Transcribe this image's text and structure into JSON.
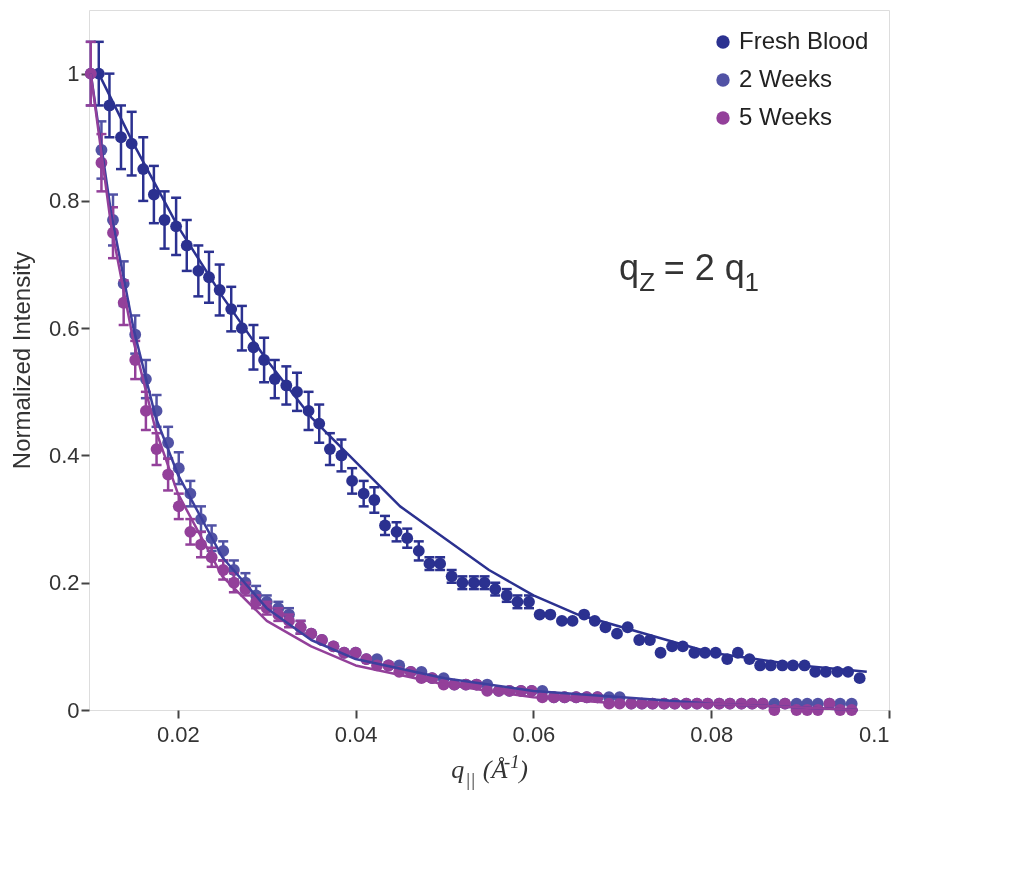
{
  "chart_data": {
    "type": "scatter",
    "xlabel": "q$_{||}$ (Å$^{-1}$)",
    "ylabel": "Normalized Intensity",
    "xlim": [
      0.01,
      0.1
    ],
    "ylim": [
      0,
      1.1
    ],
    "xticks": [
      0.02,
      0.04,
      0.06,
      0.08,
      0.1
    ],
    "yticks": [
      0,
      0.2,
      0.4,
      0.6,
      0.8,
      1
    ],
    "grid": false,
    "legend": "top right",
    "marker": "circle",
    "line_style": "solid",
    "annotations": [
      "q$_{Z}$ = 2 q$_{1}$"
    ],
    "series": [
      {
        "name": "Fresh Blood",
        "color": "#2b3190",
        "x": [
          0.0111,
          0.0123,
          0.0136,
          0.0148,
          0.0161,
          0.0173,
          0.0185,
          0.0198,
          0.021,
          0.0223,
          0.0235,
          0.0247,
          0.026,
          0.0272,
          0.0285,
          0.0297,
          0.0309,
          0.0322,
          0.0334,
          0.0347,
          0.0359,
          0.0371,
          0.0384,
          0.0396,
          0.0409,
          0.0421,
          0.0433,
          0.0446,
          0.0458,
          0.0471,
          0.0483,
          0.0495,
          0.0508,
          0.052,
          0.0533,
          0.0545,
          0.0557,
          0.057,
          0.0582,
          0.0595,
          0.0607,
          0.0619,
          0.0632,
          0.0644,
          0.0657,
          0.0669,
          0.0681,
          0.0694,
          0.0706,
          0.0719,
          0.0731,
          0.0743,
          0.0756,
          0.0768,
          0.0781,
          0.0793,
          0.0805,
          0.0818,
          0.083,
          0.0843,
          0.0855,
          0.0867,
          0.088,
          0.0892,
          0.0905,
          0.0917,
          0.0929,
          0.0942,
          0.0954,
          0.0967
        ],
        "values": [
          1.0,
          0.95,
          0.9,
          0.89,
          0.85,
          0.81,
          0.77,
          0.76,
          0.73,
          0.69,
          0.68,
          0.66,
          0.63,
          0.6,
          0.57,
          0.55,
          0.52,
          0.51,
          0.5,
          0.47,
          0.45,
          0.41,
          0.4,
          0.36,
          0.34,
          0.33,
          0.29,
          0.28,
          0.27,
          0.25,
          0.23,
          0.23,
          0.21,
          0.2,
          0.2,
          0.2,
          0.19,
          0.18,
          0.17,
          0.17,
          0.15,
          0.15,
          0.14,
          0.14,
          0.15,
          0.14,
          0.13,
          0.12,
          0.13,
          0.11,
          0.11,
          0.09,
          0.1,
          0.1,
          0.09,
          0.09,
          0.09,
          0.08,
          0.09,
          0.08,
          0.07,
          0.07,
          0.07,
          0.07,
          0.07,
          0.06,
          0.06,
          0.06,
          0.06,
          0.05
        ],
        "errors": [
          0.05,
          0.05,
          0.05,
          0.05,
          0.05,
          0.045,
          0.045,
          0.045,
          0.04,
          0.04,
          0.04,
          0.04,
          0.035,
          0.035,
          0.035,
          0.035,
          0.03,
          0.03,
          0.03,
          0.03,
          0.03,
          0.025,
          0.025,
          0.02,
          0.02,
          0.02,
          0.015,
          0.015,
          0.015,
          0.015,
          0.01,
          0.01,
          0.01,
          0.01,
          0.01,
          0.01,
          0.01,
          0.01,
          0.01,
          0.01,
          null,
          null,
          null,
          null,
          null,
          null,
          null,
          null,
          null,
          null,
          null,
          null,
          null,
          null,
          null,
          null,
          null,
          null,
          null,
          null,
          null,
          null,
          null,
          null,
          null,
          null,
          null,
          null,
          null,
          null
        ]
      },
      {
        "name": "2 Weeks",
        "color": "#5152a5",
        "x": [
          0.0102,
          0.0114,
          0.0127,
          0.0139,
          0.0152,
          0.0164,
          0.0176,
          0.0189,
          0.0201,
          0.0214,
          0.0226,
          0.0238,
          0.0251,
          0.0263,
          0.0276,
          0.0288,
          0.03,
          0.0313,
          0.0325,
          0.0338,
          0.035,
          0.0362,
          0.0375,
          0.0387,
          0.04,
          0.0412,
          0.0424,
          0.0437,
          0.0449,
          0.0462,
          0.0474,
          0.0486,
          0.0499,
          0.0511,
          0.0524,
          0.0536,
          0.0548,
          0.0561,
          0.0573,
          0.0586,
          0.0598,
          0.061,
          0.0623,
          0.0635,
          0.0648,
          0.066,
          0.0672,
          0.0685,
          0.0697,
          0.071,
          0.0722,
          0.0734,
          0.0747,
          0.0759,
          0.0772,
          0.0784,
          0.0796,
          0.0809,
          0.0821,
          0.0834,
          0.0846,
          0.0858,
          0.0871,
          0.0883,
          0.0896,
          0.0908,
          0.092,
          0.0933,
          0.0945,
          0.0958
        ],
        "values": [
          1.0,
          0.88,
          0.77,
          0.67,
          0.59,
          0.52,
          0.47,
          0.42,
          0.38,
          0.34,
          0.3,
          0.27,
          0.25,
          0.22,
          0.2,
          0.18,
          0.17,
          0.16,
          0.15,
          0.13,
          0.12,
          0.11,
          0.1,
          0.09,
          0.09,
          0.08,
          0.08,
          0.07,
          0.07,
          0.06,
          0.06,
          0.05,
          0.05,
          0.04,
          0.04,
          0.04,
          0.04,
          0.03,
          0.03,
          0.03,
          0.03,
          0.03,
          0.02,
          0.02,
          0.02,
          0.02,
          0.02,
          0.02,
          0.02,
          0.01,
          0.01,
          0.01,
          0.01,
          0.01,
          0.01,
          0.01,
          0.01,
          0.01,
          0.01,
          0.01,
          0.01,
          0.01,
          0.01,
          0.01,
          0.01,
          0.01,
          0.01,
          0.01,
          0.01,
          0.01
        ],
        "errors": [
          0.05,
          0.045,
          0.04,
          0.035,
          0.03,
          0.03,
          0.025,
          0.025,
          0.025,
          0.02,
          0.02,
          0.02,
          0.015,
          0.015,
          0.015,
          0.015,
          0.01,
          0.01,
          0.01,
          0.01,
          null,
          null,
          null,
          null,
          null,
          null,
          null,
          null,
          null,
          null,
          null,
          null,
          null,
          null,
          null,
          null,
          null,
          null,
          null,
          null,
          null,
          null,
          null,
          null,
          null,
          null,
          null,
          null,
          null,
          null,
          null,
          null,
          null,
          null,
          null,
          null,
          null,
          null,
          null,
          null,
          null,
          null,
          null,
          null,
          null,
          null,
          null,
          null,
          null,
          null
        ]
      },
      {
        "name": "5 Weeks",
        "color": "#93409a",
        "x": [
          0.0102,
          0.0114,
          0.0127,
          0.0139,
          0.0152,
          0.0164,
          0.0176,
          0.0189,
          0.0201,
          0.0214,
          0.0226,
          0.0238,
          0.0251,
          0.0263,
          0.0276,
          0.0288,
          0.03,
          0.0313,
          0.0325,
          0.0338,
          0.035,
          0.0362,
          0.0375,
          0.0387,
          0.04,
          0.0412,
          0.0424,
          0.0437,
          0.0449,
          0.0462,
          0.0474,
          0.0486,
          0.0499,
          0.0511,
          0.0524,
          0.0536,
          0.0548,
          0.0561,
          0.0573,
          0.0586,
          0.0598,
          0.061,
          0.0623,
          0.0635,
          0.0648,
          0.066,
          0.0672,
          0.0685,
          0.0697,
          0.071,
          0.0722,
          0.0734,
          0.0747,
          0.0759,
          0.0772,
          0.0784,
          0.0796,
          0.0809,
          0.0821,
          0.0834,
          0.0846,
          0.0858,
          0.0871,
          0.0883,
          0.0896,
          0.0908,
          0.092,
          0.0933,
          0.0945,
          0.0958
        ],
        "values": [
          1.0,
          0.86,
          0.75,
          0.64,
          0.55,
          0.47,
          0.41,
          0.37,
          0.32,
          0.28,
          0.26,
          0.24,
          0.22,
          0.2,
          0.19,
          0.17,
          0.16,
          0.15,
          0.14,
          0.13,
          0.12,
          0.11,
          0.1,
          0.09,
          0.09,
          0.08,
          0.07,
          0.07,
          0.06,
          0.06,
          0.05,
          0.05,
          0.04,
          0.04,
          0.04,
          0.04,
          0.03,
          0.03,
          0.03,
          0.03,
          0.03,
          0.02,
          0.02,
          0.02,
          0.02,
          0.02,
          0.02,
          0.01,
          0.01,
          0.01,
          0.01,
          0.01,
          0.01,
          0.01,
          0.01,
          0.01,
          0.01,
          0.01,
          0.01,
          0.01,
          0.01,
          0.01,
          0.0,
          0.01,
          0.0,
          0.0,
          0.0,
          0.01,
          0.0,
          0.0
        ],
        "errors": [
          0.05,
          0.045,
          0.04,
          0.035,
          0.03,
          0.03,
          0.025,
          0.025,
          0.02,
          0.02,
          0.02,
          0.015,
          0.015,
          0.015,
          0.01,
          0.01,
          0.01,
          0.01,
          0.01,
          0.01,
          null,
          null,
          null,
          null,
          null,
          null,
          null,
          null,
          null,
          null,
          null,
          null,
          null,
          null,
          null,
          null,
          null,
          null,
          null,
          null,
          null,
          null,
          null,
          null,
          null,
          null,
          null,
          null,
          null,
          null,
          null,
          null,
          null,
          null,
          null,
          null,
          null,
          null,
          null,
          null,
          null,
          null,
          null,
          null,
          null,
          null,
          null,
          null,
          null,
          null
        ]
      },
      {
        "type": "line",
        "marker": "none",
        "color": "#2b3190",
        "x": [
          0.0111,
          0.015,
          0.02,
          0.025,
          0.03,
          0.035,
          0.04,
          0.045,
          0.05,
          0.055,
          0.06,
          0.065,
          0.07,
          0.075,
          0.08,
          0.085,
          0.09,
          0.0975
        ],
        "values": [
          1.0,
          0.89,
          0.76,
          0.65,
          0.55,
          0.46,
          0.39,
          0.32,
          0.27,
          0.22,
          0.18,
          0.15,
          0.13,
          0.11,
          0.09,
          0.08,
          0.07,
          0.06
        ]
      },
      {
        "type": "line",
        "marker": "none",
        "color": "#3d3f9e",
        "x": [
          0.0102,
          0.0125,
          0.015,
          0.0175,
          0.02,
          0.025,
          0.03,
          0.035,
          0.04,
          0.05,
          0.06,
          0.07,
          0.08,
          0.0965
        ],
        "values": [
          1.0,
          0.78,
          0.6,
          0.46,
          0.37,
          0.24,
          0.16,
          0.11,
          0.08,
          0.05,
          0.03,
          0.02,
          0.01,
          0.0
        ]
      },
      {
        "type": "line",
        "marker": "none",
        "color": "#93409a",
        "x": [
          0.0102,
          0.0125,
          0.015,
          0.0175,
          0.02,
          0.025,
          0.03,
          0.035,
          0.04,
          0.05,
          0.06,
          0.07,
          0.08,
          0.0965
        ],
        "values": [
          1.0,
          0.76,
          0.58,
          0.44,
          0.34,
          0.21,
          0.14,
          0.1,
          0.07,
          0.04,
          0.02,
          0.01,
          0.01,
          0.0
        ]
      }
    ]
  }
}
